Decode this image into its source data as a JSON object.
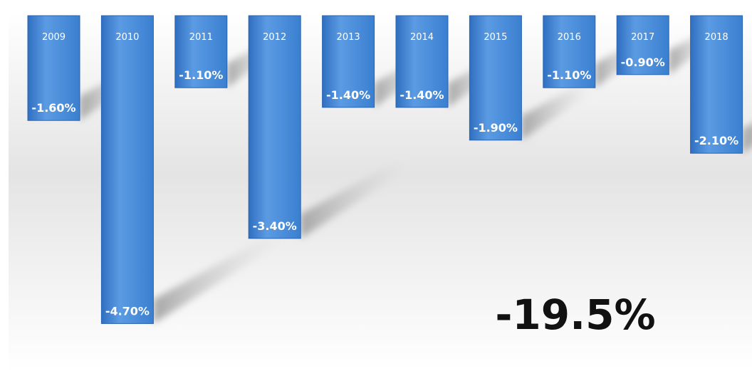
{
  "chart_data": {
    "type": "bar",
    "categories": [
      "2009",
      "2010",
      "2011",
      "2012",
      "2013",
      "2014",
      "2015",
      "2016",
      "2017",
      "2018"
    ],
    "values": [
      -1.6,
      -4.7,
      -1.1,
      -3.4,
      -1.4,
      -1.4,
      -1.9,
      -1.1,
      -0.9,
      -2.1
    ],
    "value_labels": [
      "-1.60%",
      "-4.70%",
      "-1.10%",
      "-3.40%",
      "-1.40%",
      "-1.40%",
      "-1.90%",
      "-1.10%",
      "-0.90%",
      "-2.10%"
    ],
    "title": "",
    "xlabel": "",
    "ylabel": "",
    "ylim": [
      -5,
      0
    ],
    "grid": false,
    "legend": "none",
    "total_label": "-19.5%",
    "colors": {
      "bar": "#3f85d6",
      "bar_light": "#6aa6e8",
      "bar_dark": "#2a63b0",
      "shadow": "#b0b0b0"
    }
  }
}
